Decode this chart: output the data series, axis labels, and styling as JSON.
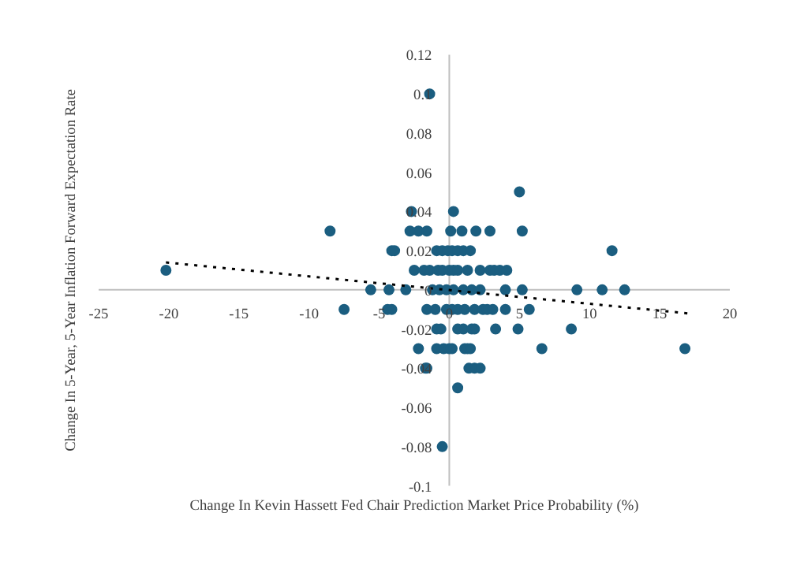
{
  "chart_data": {
    "type": "scatter",
    "xlabel": "Change In Kevin Hassett Fed Chair Prediction Market Price Probability (%)",
    "ylabel": "Change In 5-Year, 5-Year Inflation Forward Expectation Rate",
    "xlim": [
      -25,
      20
    ],
    "ylim": [
      -0.1,
      0.12
    ],
    "xticks": [
      -25,
      -20,
      -15,
      -10,
      -5,
      0,
      5,
      10,
      15,
      20
    ],
    "yticks": [
      -0.1,
      -0.08,
      -0.06,
      -0.04,
      -0.02,
      0,
      0.02,
      0.04,
      0.06,
      0.08,
      0.1,
      0.12
    ],
    "grid": false,
    "marker": "circle",
    "series": [
      {
        "color": "#1b5e80",
        "x": [
          -1.4,
          5.0,
          -2.7,
          0.3,
          -8.5,
          -2.8,
          -2.2,
          -1.6,
          0.1,
          0.9,
          1.9,
          2.9,
          5.2,
          -4.1,
          -3.9,
          -0.9,
          -0.5,
          -0.1,
          0.2,
          0.6,
          1.0,
          1.5,
          11.6,
          -20.2,
          -2.5,
          -1.8,
          -1.4,
          -0.8,
          -0.5,
          0,
          0.3,
          0.6,
          1.3,
          2.2,
          2.9,
          3.2,
          3.6,
          4.1,
          -5.6,
          -4.3,
          -3.1,
          -1.2,
          -0.7,
          -0.2,
          0.3,
          1.0,
          1.6,
          2.2,
          4.0,
          5.2,
          9.1,
          10.9,
          12.5,
          -7.5,
          -4.4,
          -4.1,
          -1.6,
          -1.0,
          -0.2,
          0.2,
          0.6,
          1.1,
          1.8,
          2.4,
          2.7,
          3.1,
          4.0,
          5.7,
          -0.9,
          -0.6,
          0.6,
          1.0,
          1.6,
          1.8,
          3.3,
          4.9,
          8.7,
          -2.2,
          -0.9,
          -0.4,
          0,
          0.2,
          1.1,
          1.3,
          1.5,
          6.6,
          16.8,
          -1.7,
          -1.6,
          1.4,
          1.8,
          2.2,
          0.6,
          -0.5
        ],
        "values": [
          0.1,
          0.05,
          0.04,
          0.04,
          0.03,
          0.03,
          0.03,
          0.03,
          0.03,
          0.03,
          0.03,
          0.03,
          0.03,
          0.02,
          0.02,
          0.02,
          0.02,
          0.02,
          0.02,
          0.02,
          0.02,
          0.02,
          0.02,
          0.01,
          0.01,
          0.01,
          0.01,
          0.01,
          0.01,
          0.01,
          0.01,
          0.01,
          0.01,
          0.01,
          0.01,
          0.01,
          0.01,
          0.01,
          0,
          0,
          0,
          0,
          0,
          0,
          0,
          0,
          0,
          0,
          0,
          0,
          0,
          0,
          0,
          -0.01,
          -0.01,
          -0.01,
          -0.01,
          -0.01,
          -0.01,
          -0.01,
          -0.01,
          -0.01,
          -0.01,
          -0.01,
          -0.01,
          -0.01,
          -0.01,
          -0.01,
          -0.02,
          -0.02,
          -0.02,
          -0.02,
          -0.02,
          -0.02,
          -0.02,
          -0.02,
          -0.02,
          -0.03,
          -0.03,
          -0.03,
          -0.03,
          -0.03,
          -0.03,
          -0.03,
          -0.03,
          -0.03,
          -0.03,
          -0.04,
          -0.04,
          -0.04,
          -0.04,
          -0.04,
          -0.05,
          -0.08
        ]
      },
      {
        "type": "line",
        "color": "#000000",
        "line_style": "dotted",
        "marker": "none",
        "x": [
          -20.2,
          17
        ],
        "values": [
          0.014,
          -0.012
        ]
      }
    ]
  }
}
